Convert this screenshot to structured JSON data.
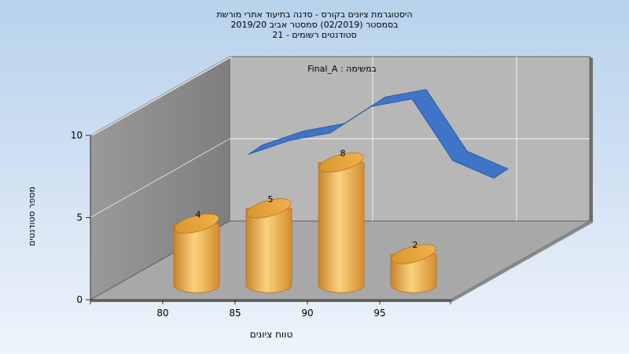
{
  "title_lines": [
    "היסטוגרמת ציונים בקורס - סדנה בתיעוד אתרי מורשת",
    "בסמסטר  (02/2019)  סמסטר אביב 2019/20",
    "סטודנטים רשומים - 21"
  ],
  "chart_data": {
    "type": "bar",
    "title": "היסטוגרמת ציונים בקורס - סדנה בתיעוד אתרי מורשת",
    "xlabel": "טווח ציונים",
    "ylabel": "מספר סטודנטים",
    "categories": [
      "80",
      "85",
      "90",
      "95"
    ],
    "values": [
      4,
      5,
      8,
      2
    ],
    "data_labels": [
      "4",
      "5",
      "8",
      "2"
    ],
    "ylim": [
      0,
      10
    ],
    "yticks": [
      "0",
      "5",
      "10"
    ],
    "xticks": [
      "80",
      "85",
      "90",
      "95"
    ],
    "grid": true,
    "overlay_label": "במשימה : Final_A",
    "overlay_curve": [
      [
        0,
        6.8
      ],
      [
        1,
        7.9
      ],
      [
        2,
        8.5
      ],
      [
        3,
        10.6
      ],
      [
        4,
        11.2
      ],
      [
        5,
        6.3
      ],
      [
        6,
        4.9
      ]
    ],
    "colors": {
      "bar": "#e8a23a",
      "bar_highlight": "#fcd27e",
      "curve": "#3f74c6",
      "wall": "#8c8c8c",
      "back_wall": "#b7b7b7",
      "floor": "#a8a8a8"
    }
  }
}
